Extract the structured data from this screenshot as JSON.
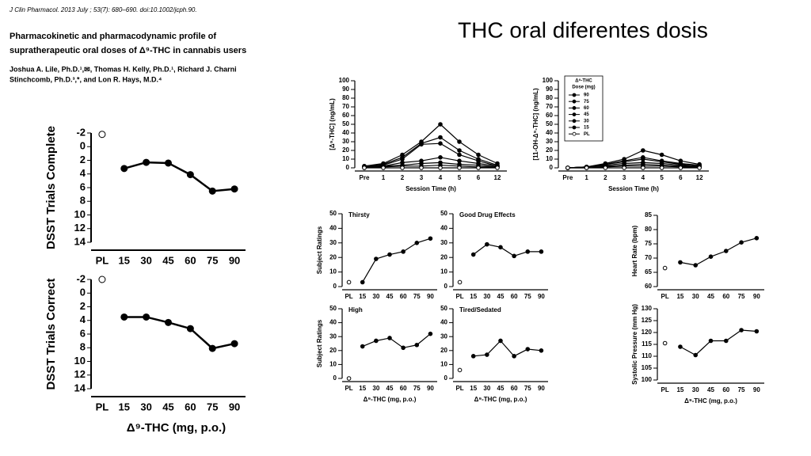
{
  "citation": "J Clin Pharmacol. 2013 July ; 53(7): 680–690. doi:10.1002/jcph.90.",
  "slide_title": "THC oral diferentes dosis",
  "paper_title": [
    "Pharmacokinetic and pharmacodynamic profile of",
    "supratherapeutic oral doses of Δ⁹-THC in cannabis users"
  ],
  "authors": [
    "Joshua A. Lile, Ph.D.¹,✉, Thomas H. Kelly, Ph.D.¹, Richard J. Charni",
    "Stinchcomb, Ph.D.³,*, and Lon R. Hays, M.D.⁴"
  ],
  "chart_data": [
    {
      "type": "line",
      "ylabel": "DSST Trials Complete",
      "categories": [
        "PL",
        "15",
        "30",
        "45",
        "60",
        "75",
        "90"
      ],
      "values": [
        -1.8,
        3.2,
        2.3,
        2.4,
        4.1,
        6.5,
        6.2
      ],
      "color": "#000000",
      "separate_first": true,
      "ylim": [
        14,
        -2
      ],
      "yticks": [
        -2,
        0,
        2,
        4,
        6,
        8,
        10,
        12,
        14
      ]
    },
    {
      "type": "line",
      "ylabel": "DSST Trials Correct",
      "xlabel": "Δ⁹-THC (mg, p.o.)",
      "categories": [
        "PL",
        "15",
        "30",
        "45",
        "60",
        "75",
        "90"
      ],
      "values": [
        -2,
        3.5,
        3.5,
        4.3,
        5.2,
        8.1,
        7.4
      ],
      "color": "#000000",
      "separate_first": true,
      "ylim": [
        14,
        -2
      ],
      "yticks": [
        -2,
        0,
        2,
        4,
        6,
        8,
        10,
        12,
        14
      ]
    },
    {
      "type": "line",
      "ylabel": "[Δ⁹-THC] (ng/mL)",
      "xlabel": "Session Time (h)",
      "categories": [
        "Pre",
        "1",
        "2",
        "3",
        "4",
        "5",
        "6",
        "12"
      ],
      "ylim": [
        0,
        100
      ],
      "yticks": [
        0,
        10,
        20,
        30,
        40,
        50,
        60,
        70,
        80,
        90,
        100
      ],
      "legend": false,
      "series": [
        {
          "name": "90",
          "color": "#000000",
          "values": [
            2,
            5,
            15,
            30,
            50,
            30,
            15,
            5
          ]
        },
        {
          "name": "75",
          "color": "#000000",
          "values": [
            2,
            4,
            12,
            28,
            35,
            20,
            10,
            3
          ]
        },
        {
          "name": "60",
          "color": "#000000",
          "values": [
            1,
            3,
            10,
            27,
            28,
            15,
            8,
            2
          ]
        },
        {
          "name": "45",
          "color": "#000000",
          "values": [
            1,
            2,
            6,
            8,
            12,
            8,
            5,
            2
          ]
        },
        {
          "name": "30",
          "color": "#000000",
          "values": [
            1,
            2,
            3,
            5,
            6,
            4,
            3,
            1
          ]
        },
        {
          "name": "15",
          "color": "#000000",
          "values": [
            0,
            1,
            2,
            2,
            3,
            2,
            1,
            1
          ]
        },
        {
          "name": "PL",
          "color": "#ffffff",
          "values": [
            0,
            0,
            0,
            0,
            0,
            0,
            0,
            0
          ]
        }
      ]
    },
    {
      "type": "line",
      "ylabel": "[11-OH-Δ⁹-THC] (ng/mL)",
      "xlabel": "Session Time (h)",
      "categories": [
        "Pre",
        "1",
        "2",
        "3",
        "4",
        "5",
        "6",
        "12"
      ],
      "ylim": [
        0,
        100
      ],
      "yticks": [
        0,
        10,
        20,
        30,
        40,
        50,
        60,
        70,
        80,
        90,
        100
      ],
      "legend": true,
      "legend_title": [
        "Δ⁹-THC",
        "Dose (mg)"
      ],
      "series": [
        {
          "name": "90",
          "color": "#000000",
          "values": [
            0,
            1,
            5,
            10,
            20,
            15,
            8,
            4
          ]
        },
        {
          "name": "75",
          "color": "#000000",
          "values": [
            0,
            1,
            4,
            8,
            12,
            8,
            5,
            3
          ]
        },
        {
          "name": "60",
          "color": "#000000",
          "values": [
            0,
            1,
            4,
            7,
            10,
            7,
            4,
            2
          ]
        },
        {
          "name": "45",
          "color": "#000000",
          "values": [
            0,
            1,
            3,
            5,
            6,
            5,
            3,
            2
          ]
        },
        {
          "name": "30",
          "color": "#000000",
          "values": [
            0,
            1,
            2,
            3,
            4,
            3,
            2,
            1
          ]
        },
        {
          "name": "15",
          "color": "#000000",
          "values": [
            0,
            0,
            1,
            2,
            2,
            2,
            1,
            1
          ]
        },
        {
          "name": "PL",
          "color": "#ffffff",
          "values": [
            0,
            0,
            0,
            0,
            0,
            0,
            0,
            0
          ]
        }
      ]
    },
    {
      "type": "line",
      "title": "Thirsty",
      "ylabel": "Subject Ratings",
      "categories": [
        "PL",
        "15",
        "30",
        "45",
        "60",
        "75",
        "90"
      ],
      "values": [
        3,
        3,
        19,
        22,
        24,
        30,
        33
      ],
      "color": "#000000",
      "separate_first": true,
      "ylim": [
        0,
        50
      ],
      "yticks": [
        0,
        10,
        20,
        30,
        40,
        50
      ]
    },
    {
      "type": "line",
      "title": "Good Drug Effects",
      "categories": [
        "PL",
        "15",
        "30",
        "45",
        "60",
        "75",
        "90"
      ],
      "values": [
        3,
        22,
        29,
        27,
        21,
        24,
        24
      ],
      "color": "#000000",
      "separate_first": true,
      "ylim": [
        0,
        50
      ],
      "yticks": [
        0,
        10,
        20,
        30,
        40,
        50
      ]
    },
    {
      "type": "line",
      "title": "High",
      "ylabel": "Subject Ratings",
      "xlabel": "Δ⁹-THC (mg, p.o.)",
      "categories": [
        "PL",
        "15",
        "30",
        "45",
        "60",
        "75",
        "90"
      ],
      "values": [
        0,
        23,
        27,
        29,
        22,
        24,
        32
      ],
      "color": "#000000",
      "separate_first": true,
      "ylim": [
        0,
        50
      ],
      "yticks": [
        0,
        10,
        20,
        30,
        40,
        50
      ]
    },
    {
      "type": "line",
      "title": "Tired/Sedated",
      "xlabel": "Δ⁹-THC (mg, p.o.)",
      "categories": [
        "PL",
        "15",
        "30",
        "45",
        "60",
        "75",
        "90"
      ],
      "values": [
        6,
        16,
        17,
        27,
        16,
        21,
        20
      ],
      "color": "#000000",
      "separate_first": true,
      "ylim": [
        0,
        50
      ],
      "yticks": [
        0,
        10,
        20,
        30,
        40,
        50
      ]
    },
    {
      "type": "line",
      "ylabel": "Heart Rate (bpm)",
      "categories": [
        "PL",
        "15",
        "30",
        "45",
        "60",
        "75",
        "90"
      ],
      "values": [
        66.5,
        68.5,
        67.5,
        70.5,
        72.5,
        75.5,
        77
      ],
      "color": "#000000",
      "separate_first": true,
      "ylim": [
        60,
        85
      ],
      "yticks": [
        60,
        65,
        70,
        75,
        80,
        85
      ]
    },
    {
      "type": "line",
      "ylabel": "Systolic Pressure (mm Hg)",
      "xlabel": "Δ⁹-THC (mg, p.o.)",
      "categories": [
        "PL",
        "15",
        "30",
        "45",
        "60",
        "75",
        "90"
      ],
      "values": [
        115.5,
        114,
        110.5,
        116.5,
        116.5,
        121,
        120.5
      ],
      "color": "#000000",
      "separate_first": true,
      "ylim": [
        100,
        130
      ],
      "yticks": [
        100,
        105,
        110,
        115,
        120,
        125,
        130
      ]
    }
  ]
}
